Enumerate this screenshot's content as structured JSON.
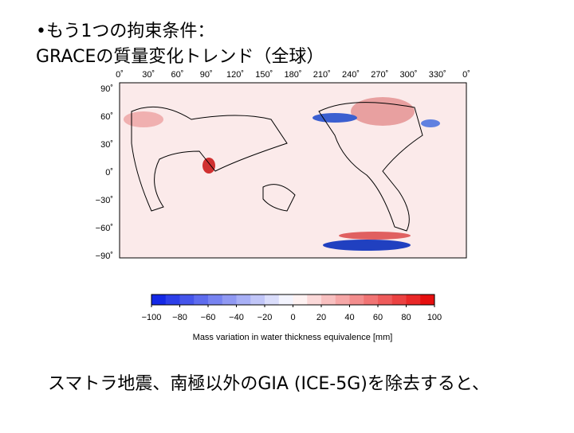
{
  "bullet": "•もう1つの拘束条件：",
  "subtitle": "GRACEの質量変化トレンド（全球）",
  "map": {
    "x_labels": [
      "0˚",
      "30˚",
      "60˚",
      "90˚",
      "120˚",
      "150˚",
      "180˚",
      "210˚",
      "240˚",
      "270˚",
      "300˚",
      "330˚",
      "0˚"
    ],
    "y_labels": [
      "90˚",
      "60˚",
      "30˚",
      "0˚",
      "−30˚",
      "−60˚",
      "−90˚"
    ]
  },
  "colorbar": {
    "lim": [
      -100,
      100
    ],
    "ticks": [
      {
        "value": -100,
        "label": "−100"
      },
      {
        "value": -80,
        "label": "−80"
      },
      {
        "value": -60,
        "label": "−60"
      },
      {
        "value": -40,
        "label": "−40"
      },
      {
        "value": -20,
        "label": "−20"
      },
      0,
      20,
      40,
      60,
      80,
      100
    ],
    "label": "Mass variation in water thickness equivalence [mm]"
  },
  "caption": "スマトラ地震、南極以外のGIA (ICE-5G)を除去すると、"
}
